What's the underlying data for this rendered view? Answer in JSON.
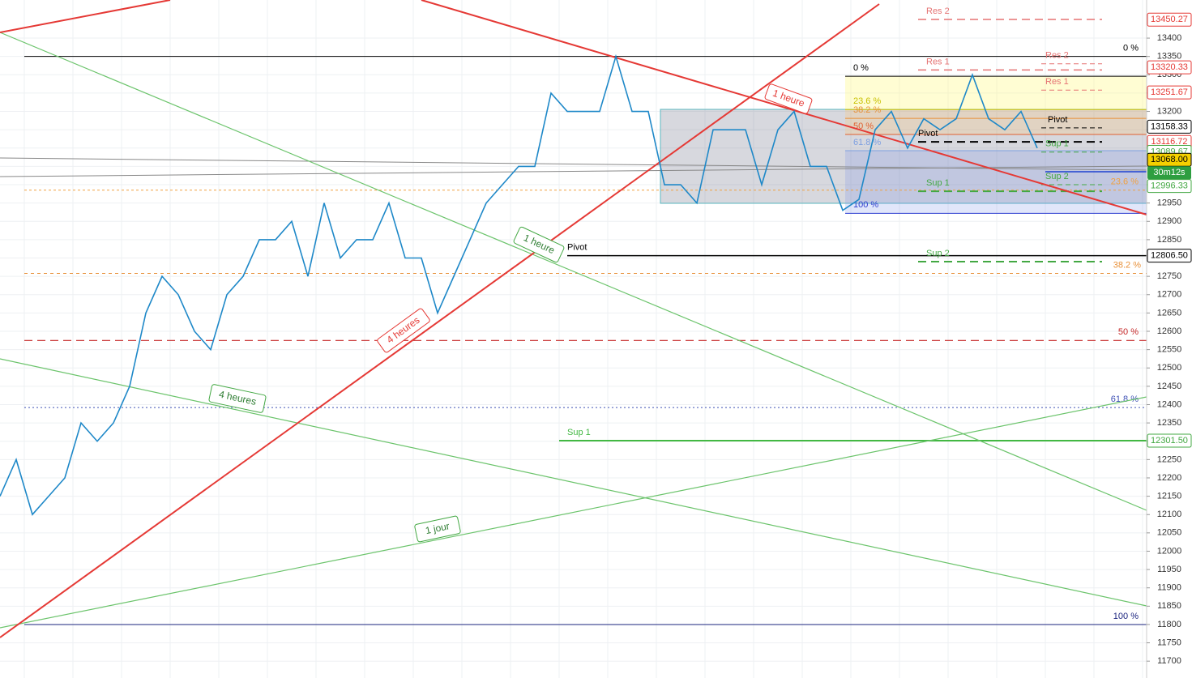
{
  "chart_data": {
    "type": "line",
    "ylim": [
      11654,
      13504
    ],
    "yticks": [
      11700,
      11750,
      11800,
      11850,
      11900,
      11950,
      12000,
      12050,
      12100,
      12150,
      12200,
      12250,
      12300,
      12350,
      12400,
      12450,
      12500,
      12550,
      12600,
      12650,
      12700,
      12750,
      12800,
      12850,
      12900,
      12950,
      13000,
      13050,
      13100,
      13150,
      13200,
      13250,
      13300,
      13350,
      13400
    ],
    "grid": true,
    "series": [
      {
        "color": "#1e88c8",
        "values": [
          12150,
          12250,
          12100,
          12150,
          12200,
          12350,
          12300,
          12350,
          12450,
          12650,
          12750,
          12700,
          12600,
          12550,
          12700,
          12750,
          12850,
          12850,
          12900,
          12750,
          12950,
          12800,
          12850,
          12850,
          12950,
          12800,
          12800,
          12650,
          12750,
          12850,
          12950,
          13000,
          13050,
          13050,
          13250,
          13200,
          13200,
          13200,
          13350,
          13200,
          13200,
          13000,
          13000,
          12950,
          13150,
          13150,
          13150,
          13000,
          13150,
          13200,
          13050,
          13050,
          12930,
          12960,
          13150,
          13200,
          13100,
          13180,
          13150,
          13180,
          13300,
          13180,
          13150,
          13200,
          13100
        ]
      }
    ],
    "levels": [
      {
        "label": "0 %",
        "value": 13350,
        "color": "#000000"
      },
      {
        "label": "38.2 %",
        "value": 12758,
        "color": "#e8913a"
      },
      {
        "label": "50 %",
        "value": 12575,
        "color": "#c62828"
      },
      {
        "label": "61.8 %",
        "value": 12392,
        "color": "#3f51b5"
      },
      {
        "label": "100 %",
        "value": 11800,
        "color": "#1a237e"
      },
      {
        "label": "23.6 %",
        "value": 12985,
        "color": "#f0a040"
      },
      {
        "label": "Pivot",
        "value": 12806.5,
        "color": "#000000"
      },
      {
        "label": "Sup 1",
        "value": 12301.5,
        "color": "#43b843"
      },
      {
        "label": "0 %",
        "value": 13296,
        "color": "#000000"
      },
      {
        "label": "23.6 %",
        "value": 13205,
        "color": "#c8c000"
      },
      {
        "label": "38.2 %",
        "value": 13181,
        "color": "#e8913a"
      },
      {
        "label": "50 %",
        "value": 13137,
        "color": "#e06030"
      },
      {
        "label": "61.8 %",
        "value": 13093,
        "color": "#7fa0e0"
      },
      {
        "label": "100 %",
        "value": 12922,
        "color": "#3040d0"
      },
      {
        "label": "Res 2",
        "value": 13451,
        "color": "#e57373"
      },
      {
        "label": "Res 1",
        "value": 13313,
        "color": "#e57373"
      },
      {
        "label": "Pivot",
        "value": 13117,
        "color": "#000000"
      },
      {
        "label": "Sup 1",
        "value": 12982,
        "color": "#43a843"
      },
      {
        "label": "Sup 2",
        "value": 12790,
        "color": "#43a843"
      },
      {
        "label": "Res 2",
        "value": 13330,
        "color": "#e57373"
      },
      {
        "label": "Res 1",
        "value": 13258,
        "color": "#e57373"
      },
      {
        "label": "Pivot",
        "value": 13155,
        "color": "#000000"
      },
      {
        "label": "Sup 1",
        "value": 13089,
        "color": "#43a843"
      },
      {
        "label": "Sup 2",
        "value": 13000,
        "color": "#43a843"
      }
    ],
    "price_tags": [
      {
        "value": 13450.27,
        "label": "13450.27",
        "color": "#e53935",
        "bg": "#ffffff"
      },
      {
        "value": 13320.33,
        "label": "13320.33",
        "color": "#e53935",
        "bg": "#ffffff"
      },
      {
        "value": 13251.67,
        "label": "13251.67",
        "color": "#e53935",
        "bg": "#ffffff"
      },
      {
        "value": 13158.33,
        "label": "13158.33",
        "color": "#000000",
        "bg": "#ffffff"
      },
      {
        "value": 13116.72,
        "label": "13116.72",
        "color": "#e53935",
        "bg": "#ffffff"
      },
      {
        "value": 13089.67,
        "label": "13089.67",
        "color": "#43a843",
        "bg": "#ffffff"
      },
      {
        "value": 12996.33,
        "label": "12996.33",
        "color": "#43a843",
        "bg": "#ffffff"
      },
      {
        "value": 12806.5,
        "label": "12806.50",
        "color": "#000000",
        "bg": "#ffffff"
      },
      {
        "value": 12301.5,
        "label": "12301.50",
        "color": "#43a843",
        "bg": "#ffffff"
      },
      {
        "value": 13068,
        "label": "13068.00",
        "color": "#000000",
        "bg": "#f5d000"
      }
    ],
    "countdown": "30m12s",
    "annotations": [
      "1 heure",
      "4 heures",
      "1 heure",
      "4 heures",
      "1 jour"
    ]
  }
}
